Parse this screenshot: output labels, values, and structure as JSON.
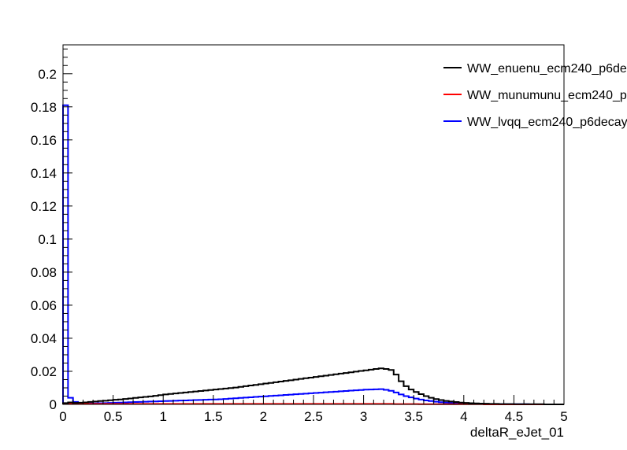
{
  "chart_data": {
    "type": "histogram",
    "title": "",
    "xlabel": "deltaR_eJet_01",
    "ylabel": "",
    "xlim": [
      0,
      5
    ],
    "ylim": [
      0,
      0.2175
    ],
    "x_ticks": [
      "0",
      "0.5",
      "1",
      "1.5",
      "2",
      "2.5",
      "3",
      "3.5",
      "4",
      "4.5",
      "5"
    ],
    "y_ticks": [
      "0",
      "0.02",
      "0.04",
      "0.06",
      "0.08",
      "0.1",
      "0.12",
      "0.14",
      "0.16",
      "0.18",
      "0.2"
    ],
    "bin_width": 0.05,
    "grid": false,
    "legend_position": "top-right",
    "series": [
      {
        "name": "WW_enuenu_ecm240_p6de",
        "color": "#000000",
        "values": [
          0.0008,
          0.0012,
          0.0009,
          0.001,
          0.0012,
          0.0015,
          0.0017,
          0.002,
          0.0022,
          0.0025,
          0.0028,
          0.003,
          0.0033,
          0.0036,
          0.0039,
          0.0042,
          0.0045,
          0.0048,
          0.0052,
          0.0056,
          0.006,
          0.0063,
          0.0066,
          0.0069,
          0.0072,
          0.0075,
          0.0078,
          0.0081,
          0.0084,
          0.0087,
          0.009,
          0.0093,
          0.0096,
          0.0099,
          0.0102,
          0.0106,
          0.011,
          0.0114,
          0.0118,
          0.0122,
          0.0126,
          0.013,
          0.0134,
          0.0138,
          0.0142,
          0.0146,
          0.015,
          0.0154,
          0.0158,
          0.0162,
          0.0166,
          0.017,
          0.0174,
          0.0178,
          0.0182,
          0.0186,
          0.019,
          0.0194,
          0.0198,
          0.0202,
          0.0206,
          0.021,
          0.0214,
          0.0218,
          0.0214,
          0.0208,
          0.018,
          0.014,
          0.011,
          0.009,
          0.0075,
          0.0062,
          0.005,
          0.004,
          0.0032,
          0.0026,
          0.0021,
          0.0017,
          0.0014,
          0.0011,
          0.0009,
          0.0007,
          0.0006,
          0.0005,
          0.0004,
          0.0003,
          0.0003,
          0.0002,
          0.0002,
          0.0002,
          0.0001,
          0.0001,
          0.0001,
          0.0001,
          0.0001,
          0.0001,
          0.0,
          0.0,
          0.0,
          0.0
        ]
      },
      {
        "name": "WW_munumunu_ecm240_p",
        "color": "#ff0000",
        "values": [
          0.0005,
          0.0004,
          0.0003,
          0.0003,
          0.0003,
          0.0003,
          0.0003,
          0.0003,
          0.0003,
          0.0003,
          0.0003,
          0.0003,
          0.0003,
          0.0003,
          0.0003,
          0.0003,
          0.0003,
          0.0003,
          0.0003,
          0.0003,
          0.0003,
          0.0003,
          0.0003,
          0.0003,
          0.0003,
          0.0003,
          0.0003,
          0.0003,
          0.0003,
          0.0003,
          0.0003,
          0.0003,
          0.0003,
          0.0003,
          0.0003,
          0.0003,
          0.0003,
          0.0003,
          0.0003,
          0.0003,
          0.0003,
          0.0003,
          0.0003,
          0.0003,
          0.0003,
          0.0003,
          0.0003,
          0.0003,
          0.0003,
          0.0003,
          0.0003,
          0.0003,
          0.0003,
          0.0003,
          0.0003,
          0.0003,
          0.0003,
          0.0003,
          0.0003,
          0.0003,
          0.0003,
          0.0003,
          0.0003,
          0.0003,
          0.0003,
          0.0003,
          0.0002,
          0.0002,
          0.0002,
          0.0002,
          0.0002,
          0.0001,
          0.0001,
          0.0001,
          0.0001,
          0.0001,
          0.0001,
          0.0001,
          0.0001,
          0.0001,
          0.0001,
          0.0001,
          0.0001,
          0.0001,
          0.0,
          0.0,
          0.0,
          0.0,
          0.0,
          0.0,
          0.0,
          0.0,
          0.0,
          0.0,
          0.0,
          0.0,
          0.0,
          0.0,
          0.0,
          0.0
        ]
      },
      {
        "name": "WW_lvqq_ecm240_p6decay",
        "color": "#0000ff",
        "values": [
          0.181,
          0.004,
          0.0015,
          0.0008,
          0.0006,
          0.0006,
          0.0006,
          0.0007,
          0.0008,
          0.0009,
          0.001,
          0.0011,
          0.0012,
          0.0013,
          0.0014,
          0.0015,
          0.0016,
          0.0017,
          0.0018,
          0.0019,
          0.002,
          0.0021,
          0.0022,
          0.0023,
          0.0024,
          0.0025,
          0.0026,
          0.0027,
          0.0028,
          0.0029,
          0.003,
          0.0031,
          0.0033,
          0.0035,
          0.0037,
          0.0039,
          0.0041,
          0.0043,
          0.0045,
          0.0047,
          0.0049,
          0.0051,
          0.0053,
          0.0055,
          0.0057,
          0.0059,
          0.0061,
          0.0063,
          0.0065,
          0.0067,
          0.0069,
          0.0071,
          0.0073,
          0.0075,
          0.0077,
          0.0079,
          0.0081,
          0.0083,
          0.0085,
          0.0087,
          0.0089,
          0.009,
          0.0091,
          0.0092,
          0.0088,
          0.0082,
          0.0072,
          0.006,
          0.005,
          0.0042,
          0.0035,
          0.0029,
          0.0024,
          0.002,
          0.0016,
          0.0013,
          0.0011,
          0.0009,
          0.0007,
          0.0006,
          0.0005,
          0.0004,
          0.0003,
          0.0003,
          0.0002,
          0.0002,
          0.0002,
          0.0001,
          0.0001,
          0.0001,
          0.0001,
          0.0001,
          0.0001,
          0.0,
          0.0,
          0.0,
          0.0,
          0.0,
          0.0,
          0.0
        ]
      }
    ]
  }
}
